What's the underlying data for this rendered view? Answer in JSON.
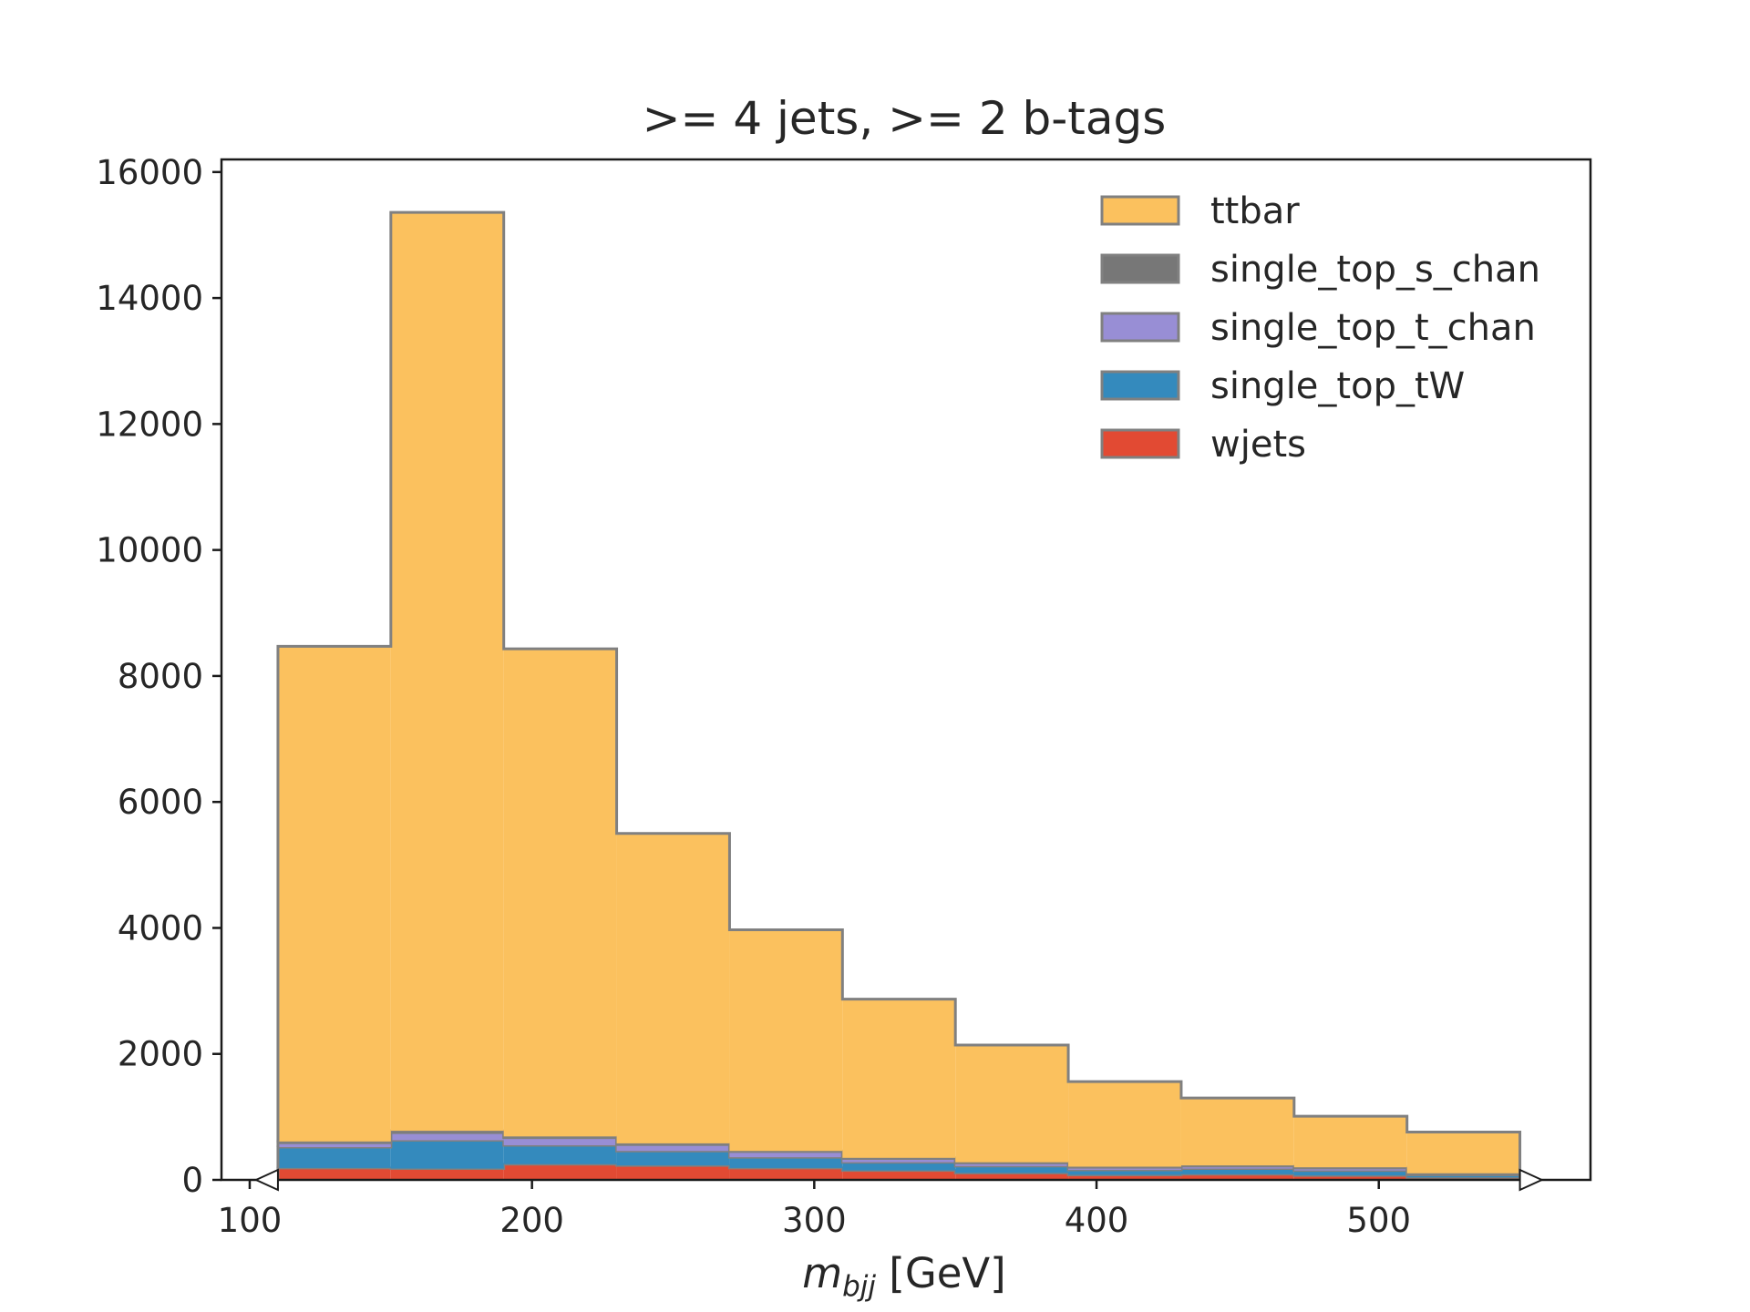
{
  "chart_data": {
    "type": "bar",
    "title": ">= 4 jets, >= 2 b-tags",
    "xlabel": {
      "symbol": "m",
      "subscript": "bjj",
      "unit": " [GeV]"
    },
    "ylabel": "",
    "xlim": [
      90,
      575
    ],
    "ylim": [
      0,
      16200
    ],
    "xticks": [
      100,
      200,
      300,
      400,
      500
    ],
    "yticks": [
      0,
      2000,
      4000,
      6000,
      8000,
      10000,
      12000,
      14000,
      16000
    ],
    "bin_edges": [
      110,
      150,
      190,
      230,
      270,
      310,
      350,
      390,
      430,
      470,
      510,
      550
    ],
    "stacked": true,
    "series": [
      {
        "name": "wjets",
        "color": "#e24a33",
        "values": [
          190,
          180,
          250,
          230,
          190,
          150,
          110,
          80,
          90,
          70,
          40
        ]
      },
      {
        "name": "single_top_tW",
        "color": "#348abd",
        "values": [
          330,
          450,
          300,
          230,
          170,
          130,
          110,
          80,
          90,
          80,
          40
        ]
      },
      {
        "name": "single_top_t_chan",
        "color": "#988ed5",
        "values": [
          70,
          120,
          120,
          100,
          90,
          60,
          50,
          40,
          40,
          40,
          20
        ]
      },
      {
        "name": "single_top_s_chan",
        "color": "#777777",
        "values": [
          20,
          30,
          20,
          20,
          10,
          10,
          10,
          10,
          10,
          10,
          5
        ]
      },
      {
        "name": "ttbar",
        "color": "#fbc15e",
        "values": [
          7860,
          14580,
          7740,
          4920,
          3510,
          2520,
          1860,
          1350,
          1070,
          810,
          655
        ]
      }
    ],
    "legend": {
      "position": "top-right",
      "order": [
        "ttbar",
        "single_top_s_chan",
        "single_top_t_chan",
        "single_top_tW",
        "wjets"
      ]
    }
  }
}
